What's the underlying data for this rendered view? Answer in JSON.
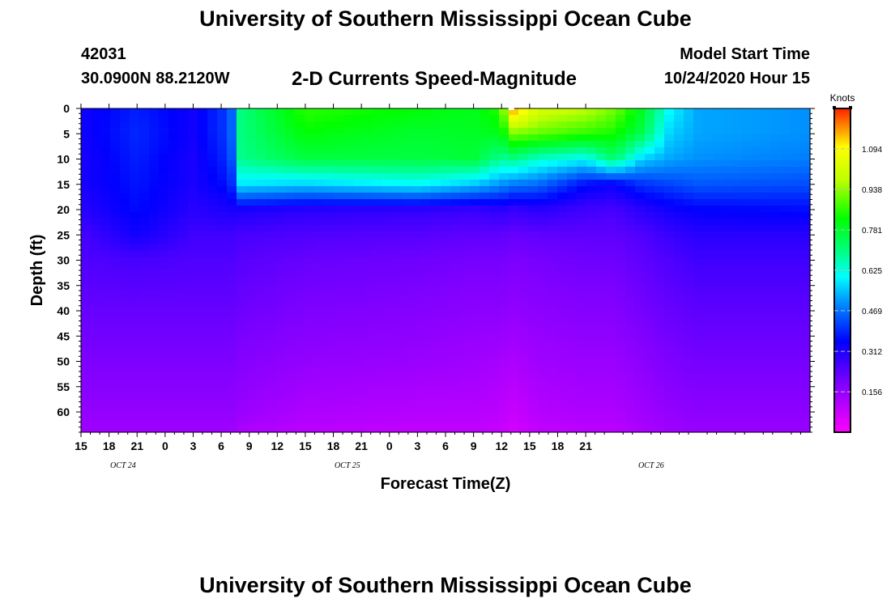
{
  "header": {
    "title": "University of Southern Mississippi Ocean Cube",
    "station": "42031",
    "coords": "30.0900N 88.2120W",
    "subtitle": "2-D Currents Speed-Magnitude",
    "model_label": "Model Start Time",
    "model_time": "10/24/2020 Hour 15"
  },
  "footer": {
    "title": "University of Southern Mississippi Ocean Cube"
  },
  "chart_data": {
    "type": "heatmap",
    "title": "2-D Currents Speed-Magnitude",
    "xlabel": "Forecast Time(Z)",
    "ylabel": "Depth (ft)",
    "x_hours": [
      0,
      78
    ],
    "x_tick_labels": [
      "15",
      "18",
      "21",
      "0",
      "3",
      "6",
      "9",
      "12",
      "15",
      "18",
      "21",
      "0",
      "3",
      "6",
      "9",
      "12",
      "15",
      "18",
      "21"
    ],
    "x_tick_step_hours": 3,
    "date_labels": [
      {
        "label": "OCT 24",
        "hour": 4.5
      },
      {
        "label": "OCT 25",
        "hour": 28.5
      },
      {
        "label": "OCT 26",
        "hour": 61
      }
    ],
    "y_range": [
      0,
      64
    ],
    "y_ticks": [
      0,
      5,
      10,
      15,
      20,
      25,
      30,
      35,
      40,
      45,
      50,
      55,
      60
    ],
    "colorbar": {
      "title": "Knots",
      "range": [
        0,
        1.25
      ],
      "ticks": [
        1.094,
        0.938,
        0.781,
        0.625,
        0.469,
        0.312,
        0.156
      ]
    },
    "profile_depths": [
      0,
      5,
      10,
      15,
      20,
      25,
      30,
      40,
      50,
      60,
      64
    ],
    "profiles": [
      {
        "hour": 0,
        "values": [
          0.33,
          0.33,
          0.32,
          0.32,
          0.3,
          0.26,
          0.25,
          0.22,
          0.19,
          0.16,
          0.14
        ]
      },
      {
        "hour": 6,
        "values": [
          0.38,
          0.39,
          0.38,
          0.37,
          0.36,
          0.33,
          0.26,
          0.22,
          0.19,
          0.16,
          0.14
        ]
      },
      {
        "hour": 12,
        "values": [
          0.33,
          0.33,
          0.32,
          0.32,
          0.3,
          0.27,
          0.25,
          0.22,
          0.19,
          0.16,
          0.14
        ]
      },
      {
        "hour": 16,
        "values": [
          0.42,
          0.42,
          0.4,
          0.37,
          0.32,
          0.27,
          0.25,
          0.22,
          0.19,
          0.16,
          0.14
        ]
      },
      {
        "hour": 17,
        "values": [
          0.7,
          0.7,
          0.69,
          0.58,
          0.32,
          0.26,
          0.24,
          0.21,
          0.18,
          0.15,
          0.12
        ]
      },
      {
        "hour": 24,
        "values": [
          0.86,
          0.82,
          0.76,
          0.56,
          0.3,
          0.25,
          0.22,
          0.19,
          0.16,
          0.12,
          0.1
        ]
      },
      {
        "hour": 36,
        "values": [
          0.82,
          0.78,
          0.76,
          0.6,
          0.29,
          0.24,
          0.21,
          0.18,
          0.15,
          0.11,
          0.09
        ]
      },
      {
        "hour": 42,
        "values": [
          0.8,
          0.79,
          0.77,
          0.55,
          0.28,
          0.23,
          0.2,
          0.17,
          0.14,
          0.11,
          0.09
        ]
      },
      {
        "hour": 45,
        "values": [
          0.86,
          0.8,
          0.68,
          0.5,
          0.3,
          0.23,
          0.2,
          0.17,
          0.13,
          0.1,
          0.08
        ]
      },
      {
        "hour": 46,
        "values": [
          1.18,
          0.92,
          0.7,
          0.48,
          0.28,
          0.22,
          0.19,
          0.16,
          0.12,
          0.08,
          0.06
        ]
      },
      {
        "hour": 49,
        "values": [
          1.02,
          0.9,
          0.64,
          0.46,
          0.3,
          0.23,
          0.2,
          0.17,
          0.14,
          0.11,
          0.09
        ]
      },
      {
        "hour": 54,
        "values": [
          0.98,
          0.86,
          0.6,
          0.36,
          0.27,
          0.23,
          0.21,
          0.18,
          0.15,
          0.12,
          0.1
        ]
      },
      {
        "hour": 57,
        "values": [
          0.92,
          0.84,
          0.72,
          0.34,
          0.26,
          0.23,
          0.21,
          0.18,
          0.15,
          0.12,
          0.1
        ]
      },
      {
        "hour": 60,
        "values": [
          0.8,
          0.75,
          0.56,
          0.4,
          0.3,
          0.25,
          0.23,
          0.2,
          0.17,
          0.14,
          0.12
        ]
      },
      {
        "hour": 63,
        "values": [
          0.6,
          0.56,
          0.52,
          0.42,
          0.33,
          0.28,
          0.25,
          0.22,
          0.19,
          0.16,
          0.14
        ]
      },
      {
        "hour": 66,
        "values": [
          0.52,
          0.52,
          0.5,
          0.44,
          0.35,
          0.3,
          0.27,
          0.23,
          0.2,
          0.17,
          0.15
        ]
      },
      {
        "hour": 78,
        "values": [
          0.5,
          0.5,
          0.48,
          0.43,
          0.36,
          0.3,
          0.27,
          0.23,
          0.2,
          0.17,
          0.15
        ]
      }
    ]
  }
}
